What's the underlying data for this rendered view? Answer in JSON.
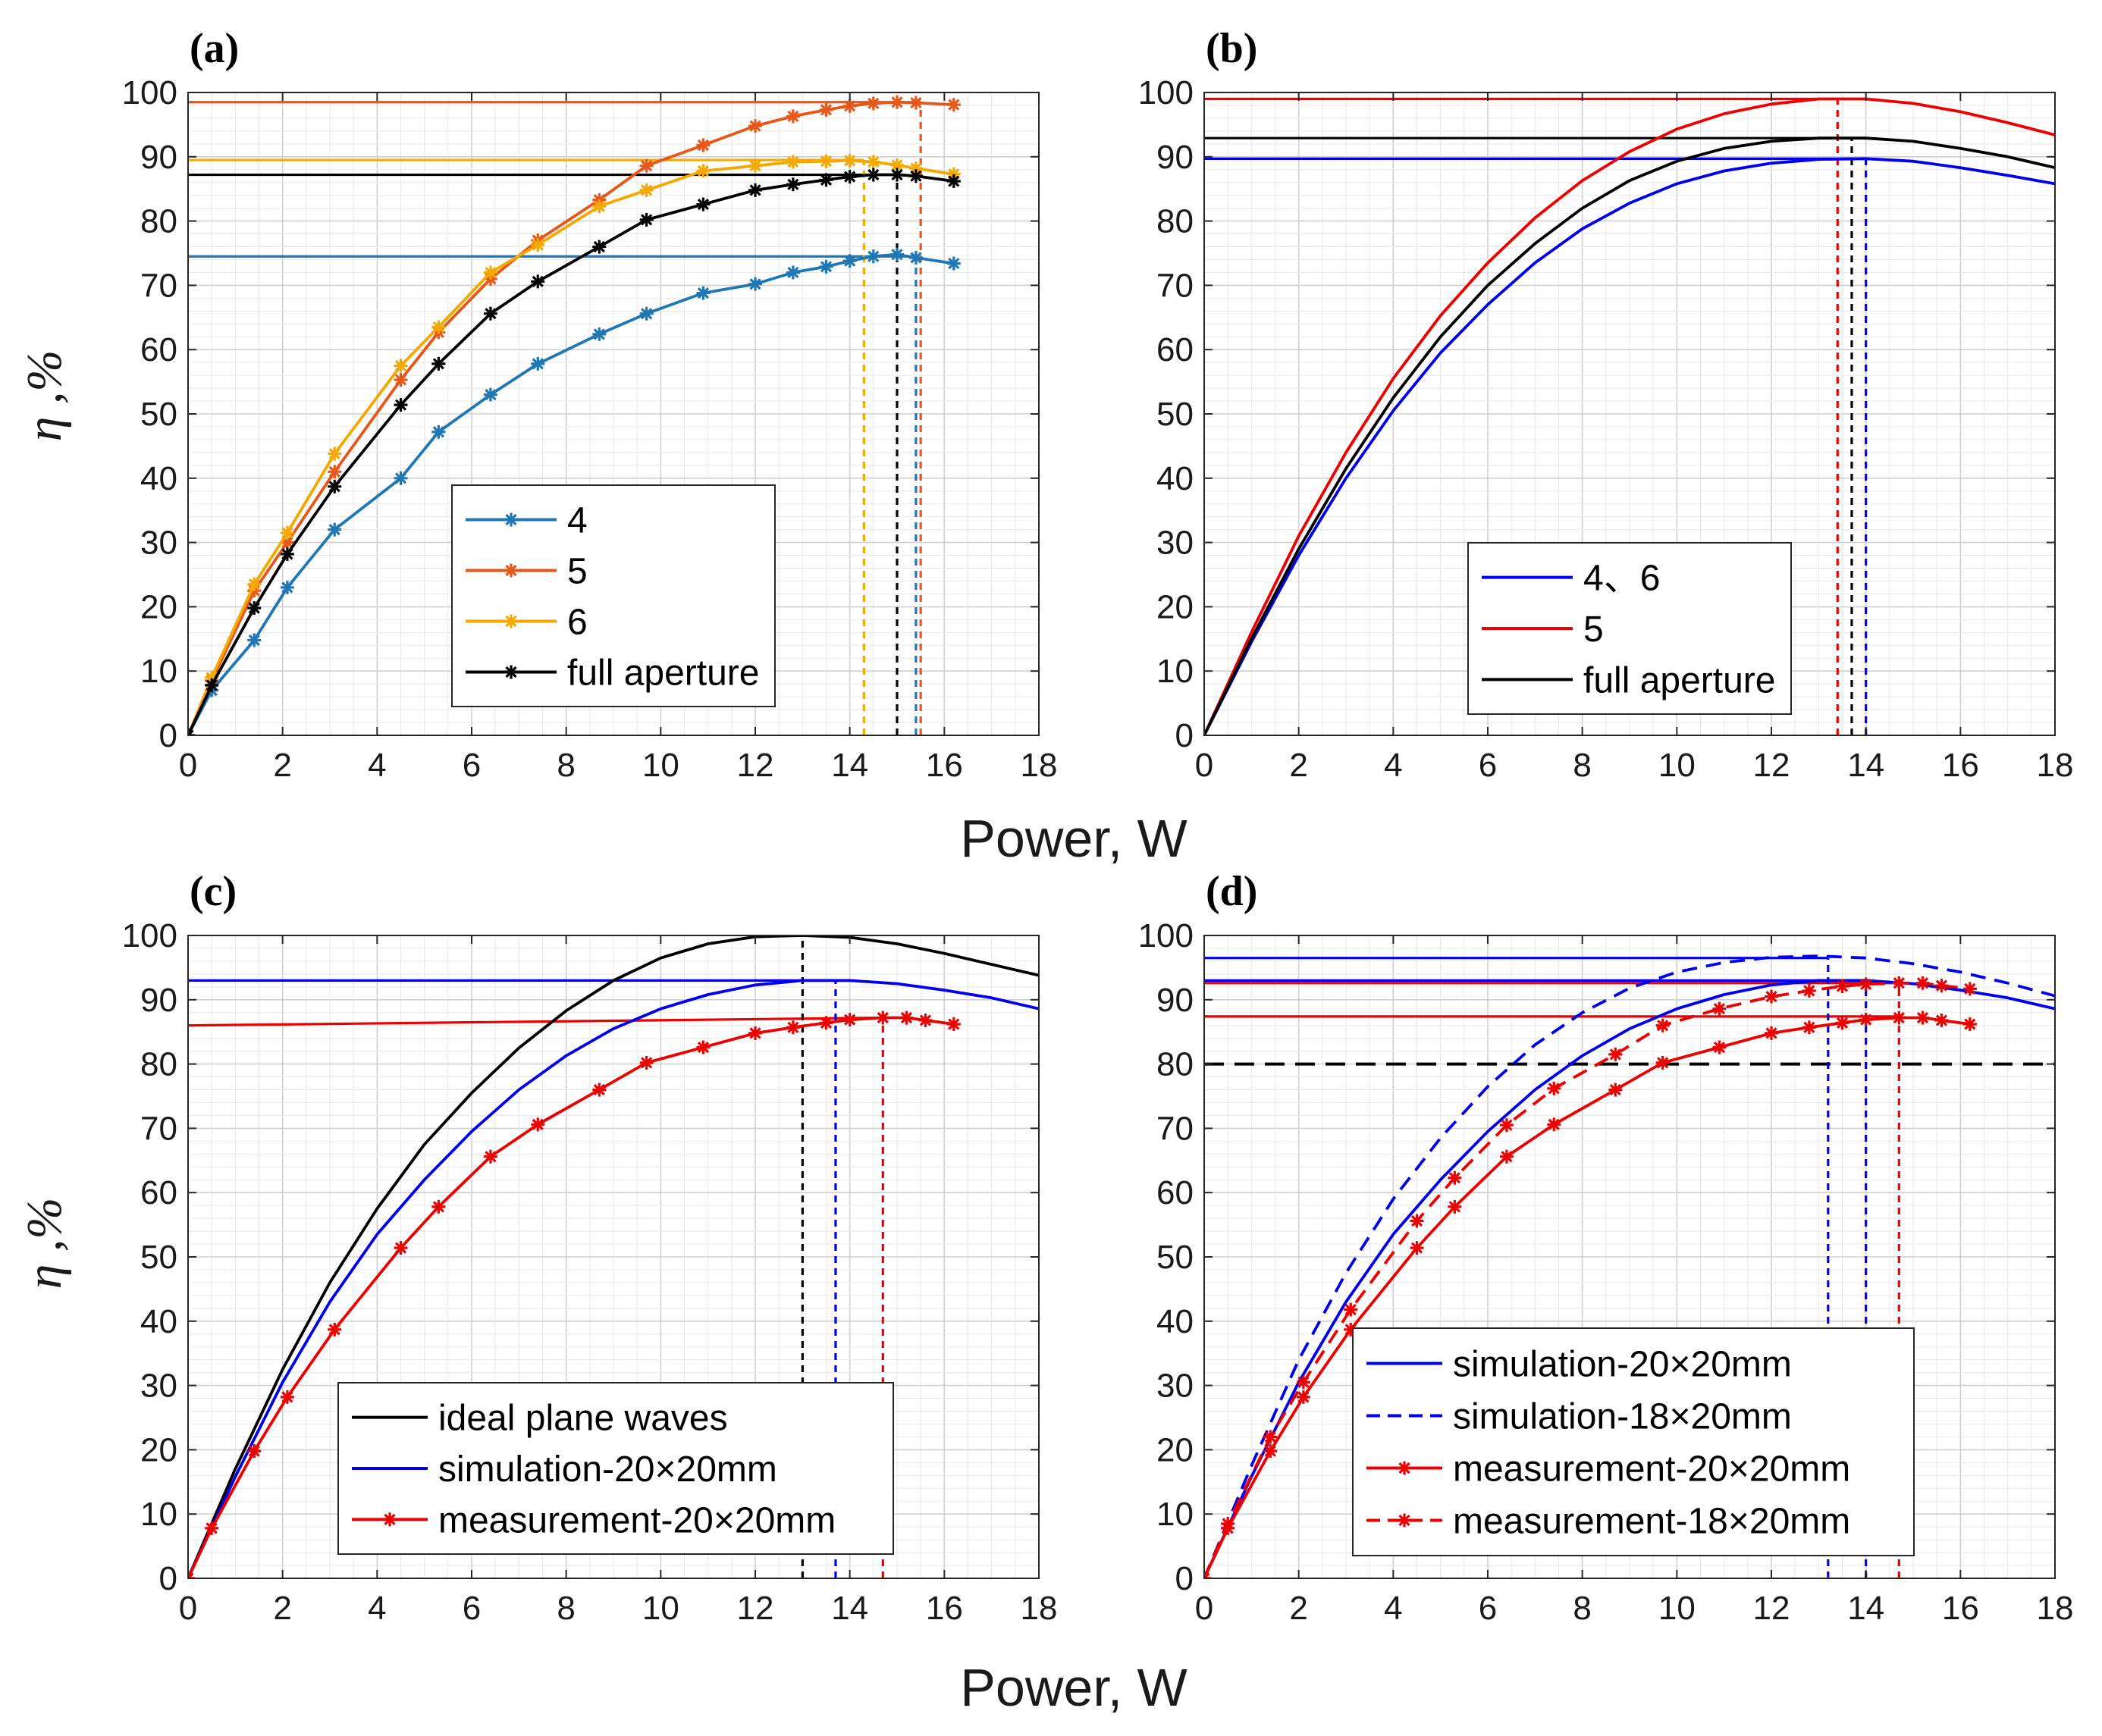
{
  "figure": {
    "xlabel_top": "Power, W",
    "xlabel_bottom": "Power, W",
    "ylabel_top": "η ,%",
    "ylabel_bottom": "η ,%"
  },
  "chart_data": [
    {
      "id": "a",
      "panel_label": "(a)",
      "type": "line",
      "xlim": [
        0,
        18
      ],
      "ylim": [
        0,
        100
      ],
      "xticks": [
        "0",
        "2",
        "4",
        "6",
        "8",
        "10",
        "12",
        "14",
        "16",
        "18"
      ],
      "yticks": [
        "0",
        "10",
        "20",
        "30",
        "40",
        "50",
        "60",
        "70",
        "80",
        "90",
        "100"
      ],
      "grid": true,
      "legend_position": "center-right",
      "series": [
        {
          "name": "4",
          "color": "#1f77b4",
          "style": "solid",
          "marker": "asterisk",
          "in_legend": true,
          "x": [
            0,
            0.5,
            1.4,
            2.1,
            3.1,
            4.5,
            5.3,
            6.4,
            7.4,
            8.7,
            9.7,
            10.9,
            12,
            12.8,
            13.5,
            14,
            14.5,
            15,
            15.4,
            16.2
          ],
          "y": [
            0,
            7,
            14.8,
            23,
            32,
            40,
            47.2,
            53,
            57.8,
            62.4,
            65.6,
            68.8,
            70.2,
            72,
            72.9,
            73.8,
            74.5,
            74.8,
            74.3,
            73.4
          ]
        },
        {
          "name": "5",
          "color": "#e8571a",
          "style": "solid",
          "marker": "asterisk",
          "in_legend": true,
          "x": [
            0,
            0.5,
            1.4,
            2.1,
            3.1,
            4.5,
            5.3,
            6.4,
            7.4,
            8.7,
            9.7,
            10.9,
            12,
            12.8,
            13.5,
            14,
            14.5,
            15,
            15.4,
            16.2
          ],
          "y": [
            0,
            8.5,
            22.5,
            30,
            41,
            55.3,
            62.7,
            71,
            77,
            83.3,
            88.6,
            91.8,
            94.8,
            96.3,
            97.3,
            97.9,
            98.3,
            98.5,
            98.4,
            98.1
          ]
        },
        {
          "name": "6",
          "color": "#f5a800",
          "style": "solid",
          "marker": "asterisk",
          "in_legend": true,
          "x": [
            0,
            0.5,
            1.4,
            2.1,
            3.1,
            4.5,
            5.3,
            6.4,
            7.4,
            8.7,
            9.7,
            10.9,
            12,
            12.8,
            13.5,
            14,
            14.5,
            15,
            15.4,
            16.2
          ],
          "y": [
            0,
            9,
            23.5,
            31.5,
            43.8,
            57.5,
            63.5,
            72,
            76.3,
            82.3,
            84.8,
            87.8,
            88.6,
            89.2,
            89.3,
            89.4,
            89.2,
            88.7,
            88.2,
            87.3
          ]
        },
        {
          "name": "full aperture",
          "color": "#000000",
          "style": "solid",
          "marker": "asterisk",
          "in_legend": true,
          "x": [
            0,
            0.5,
            1.4,
            2.1,
            3.1,
            4.5,
            5.3,
            6.4,
            7.4,
            8.7,
            9.7,
            10.9,
            12,
            12.8,
            13.5,
            14,
            14.5,
            15,
            15.4,
            16.2
          ],
          "y": [
            0,
            7.8,
            19.8,
            28.2,
            38.7,
            51.4,
            57.8,
            65.6,
            70.6,
            76,
            80.2,
            82.6,
            84.8,
            85.7,
            86.4,
            86.9,
            87.2,
            87.2,
            87.0,
            86.2
          ]
        }
      ],
      "reference_lines": [
        {
          "color": "#1f77b4",
          "kind": "h",
          "y": 74.5,
          "x0": 0,
          "x1": 15.4
        },
        {
          "color": "#e8571a",
          "kind": "h",
          "y": 98.5,
          "x0": 0,
          "x1": 15.5
        },
        {
          "color": "#f5a800",
          "kind": "h",
          "y": 89.5,
          "x0": 0,
          "x1": 14.3
        },
        {
          "color": "#000000",
          "kind": "h",
          "y": 87.2,
          "x0": 0,
          "x1": 15.0
        },
        {
          "color": "#f5a800",
          "kind": "v",
          "x": 14.3,
          "y0": 0,
          "y1": 89.5,
          "dashed": true
        },
        {
          "color": "#000000",
          "kind": "v",
          "x": 15.0,
          "y0": 0,
          "y1": 87.2,
          "dashed": true
        },
        {
          "color": "#1f77b4",
          "kind": "v",
          "x": 15.4,
          "y0": 0,
          "y1": 74.5,
          "dashed": true
        },
        {
          "color": "#e8571a",
          "kind": "v",
          "x": 15.5,
          "y0": 0,
          "y1": 98.5,
          "dashed": true
        }
      ]
    },
    {
      "id": "b",
      "panel_label": "(b)",
      "type": "line",
      "xlim": [
        0,
        18
      ],
      "ylim": [
        0,
        100
      ],
      "xticks": [
        "0",
        "2",
        "4",
        "6",
        "8",
        "10",
        "12",
        "14",
        "16",
        "18"
      ],
      "yticks": [
        "0",
        "10",
        "20",
        "30",
        "40",
        "50",
        "60",
        "70",
        "80",
        "90",
        "100"
      ],
      "grid": true,
      "legend_position": "center-right",
      "series": [
        {
          "name": "4、6",
          "color": "#0000ee",
          "style": "solid",
          "marker": "none",
          "in_legend": true,
          "x": [
            0,
            1,
            2,
            3,
            4,
            5,
            6,
            7,
            8,
            9,
            10,
            11,
            12,
            13,
            14,
            15,
            16,
            17,
            18
          ],
          "y": [
            0,
            14.5,
            28,
            40,
            50.5,
            59.5,
            67,
            73.5,
            78.8,
            82.8,
            85.8,
            87.8,
            89,
            89.6,
            89.7,
            89.3,
            88.3,
            87.1,
            85.8
          ]
        },
        {
          "name": "5",
          "color": "#ee0000",
          "style": "solid",
          "marker": "none",
          "in_legend": true,
          "x": [
            0,
            1,
            2,
            3,
            4,
            5,
            6,
            7,
            8,
            9,
            10,
            11,
            12,
            13,
            14,
            15,
            16,
            17,
            18
          ],
          "y": [
            0,
            16,
            31,
            44,
            55.5,
            65.3,
            73.5,
            80.5,
            86.3,
            90.8,
            94.3,
            96.7,
            98.2,
            99,
            99,
            98.3,
            97,
            95.3,
            93.4
          ]
        },
        {
          "name": "full aperture",
          "color": "#000000",
          "style": "solid",
          "marker": "none",
          "in_legend": true,
          "x": [
            0,
            1,
            2,
            3,
            4,
            5,
            6,
            7,
            8,
            9,
            10,
            11,
            12,
            13,
            14,
            15,
            16,
            17,
            18
          ],
          "y": [
            0,
            15,
            29,
            41.5,
            52.5,
            62,
            70,
            76.5,
            82,
            86.3,
            89.3,
            91.3,
            92.4,
            92.9,
            92.9,
            92.4,
            91.3,
            90,
            88.3
          ]
        }
      ],
      "reference_lines": [
        {
          "color": "#0000ee",
          "kind": "h",
          "y": 89.7,
          "x0": 0,
          "x1": 14.0
        },
        {
          "color": "#ee0000",
          "kind": "h",
          "y": 99.0,
          "x0": 0,
          "x1": 13.4
        },
        {
          "color": "#000000",
          "kind": "h",
          "y": 92.9,
          "x0": 0,
          "x1": 13.7
        },
        {
          "color": "#ee0000",
          "kind": "v",
          "x": 13.4,
          "y0": 0,
          "y1": 99.0,
          "dashed": true
        },
        {
          "color": "#000000",
          "kind": "v",
          "x": 13.7,
          "y0": 0,
          "y1": 92.9,
          "dashed": true
        },
        {
          "color": "#0000ee",
          "kind": "v",
          "x": 14.0,
          "y0": 0,
          "y1": 89.7,
          "dashed": true
        }
      ]
    },
    {
      "id": "c",
      "panel_label": "(c)",
      "type": "line",
      "xlim": [
        0,
        18
      ],
      "ylim": [
        0,
        100
      ],
      "xticks": [
        "0",
        "2",
        "4",
        "6",
        "8",
        "10",
        "12",
        "14",
        "16",
        "18"
      ],
      "yticks": [
        "0",
        "10",
        "20",
        "30",
        "40",
        "50",
        "60",
        "70",
        "80",
        "90",
        "100"
      ],
      "grid": true,
      "legend_position": "bottom-right",
      "series": [
        {
          "name": "ideal plane waves",
          "color": "#000000",
          "style": "solid",
          "marker": "none",
          "in_legend": true,
          "x": [
            0,
            1,
            2,
            3,
            4,
            5,
            6,
            7,
            8,
            9,
            10,
            11,
            12,
            13,
            14,
            15,
            16,
            17,
            18
          ],
          "y": [
            0,
            17,
            32.5,
            46,
            57.5,
            67.5,
            75.5,
            82.5,
            88.3,
            93,
            96.5,
            98.7,
            99.8,
            100,
            99.7,
            98.7,
            97.2,
            95.5,
            93.8
          ]
        },
        {
          "name": "simulation-20×20mm",
          "color": "#0000ee",
          "style": "solid",
          "marker": "none",
          "in_legend": true,
          "x": [
            0,
            1,
            2,
            3,
            4,
            5,
            6,
            7,
            8,
            9,
            10,
            11,
            12,
            13,
            14,
            15,
            16,
            17,
            18
          ],
          "y": [
            0,
            15.8,
            30.5,
            43,
            53.5,
            62,
            69.5,
            76,
            81.3,
            85.5,
            88.6,
            90.8,
            92.3,
            93,
            93,
            92.5,
            91.5,
            90.3,
            88.6
          ]
        },
        {
          "name": "measurement-20×20mm",
          "color": "#ee0000",
          "style": "solid",
          "marker": "asterisk",
          "in_legend": true,
          "x": [
            0,
            0.5,
            1.4,
            2.1,
            3.1,
            4.5,
            5.3,
            6.4,
            7.4,
            8.7,
            9.7,
            10.9,
            12,
            12.8,
            13.5,
            14,
            14.7,
            15.2,
            15.6,
            16.2
          ],
          "y": [
            0,
            7.8,
            19.8,
            28.2,
            38.7,
            51.4,
            57.8,
            65.6,
            70.6,
            76,
            80.2,
            82.6,
            84.8,
            85.7,
            86.4,
            86.9,
            87.2,
            87.2,
            86.8,
            86.2
          ]
        }
      ],
      "reference_lines": [
        {
          "color": "#0000ee",
          "kind": "h",
          "y": 93.0,
          "x0": 0,
          "x1": 13.7
        },
        {
          "color": "#ee0000",
          "kind": "h",
          "y1": 86.0,
          "y2": 87.2,
          "x0": 0,
          "x1": 14.7
        },
        {
          "color": "#000000",
          "kind": "v",
          "x": 13.0,
          "y0": 0,
          "y1": 100,
          "dashed": true
        },
        {
          "color": "#0000ee",
          "kind": "v",
          "x": 13.7,
          "y0": 0,
          "y1": 93.0,
          "dashed": true
        },
        {
          "color": "#ee0000",
          "kind": "v",
          "x": 14.7,
          "y0": 0,
          "y1": 87.2,
          "dashed": true
        }
      ]
    },
    {
      "id": "d",
      "panel_label": "(d)",
      "type": "line",
      "xlim": [
        0,
        18
      ],
      "ylim": [
        0,
        100
      ],
      "xticks": [
        "0",
        "2",
        "4",
        "6",
        "8",
        "10",
        "12",
        "14",
        "16",
        "18"
      ],
      "yticks": [
        "0",
        "10",
        "20",
        "30",
        "40",
        "50",
        "60",
        "70",
        "80",
        "90",
        "100"
      ],
      "grid": true,
      "legend_position": "bottom-right",
      "series": [
        {
          "name": "simulation-20×20mm",
          "color": "#0000ee",
          "style": "solid",
          "marker": "none",
          "in_legend": true,
          "x": [
            0,
            1,
            2,
            3,
            4,
            5,
            6,
            7,
            8,
            9,
            10,
            11,
            12,
            13,
            14,
            15,
            16,
            17,
            18
          ],
          "y": [
            0,
            15.8,
            30.5,
            43,
            53.5,
            62,
            69.5,
            76,
            81.3,
            85.5,
            88.6,
            90.8,
            92.3,
            93,
            93,
            92.5,
            91.5,
            90.3,
            88.6
          ]
        },
        {
          "name": "simulation-18×20mm",
          "color": "#0000ee",
          "style": "dashed",
          "marker": "none",
          "in_legend": true,
          "x": [
            0,
            1,
            2,
            3,
            4,
            5,
            6,
            7,
            8,
            9,
            10,
            11,
            12,
            13,
            14,
            15,
            16,
            17,
            18
          ],
          "y": [
            0,
            17.5,
            34,
            47.5,
            59,
            68.5,
            76.5,
            83,
            88,
            91.8,
            94.3,
            95.8,
            96.6,
            96.8,
            96.5,
            95.6,
            94.3,
            92.6,
            90.6
          ]
        },
        {
          "name": "measurement-20×20mm",
          "color": "#ee0000",
          "style": "solid",
          "marker": "asterisk",
          "in_legend": true,
          "x": [
            0,
            0.5,
            1.4,
            2.1,
            3.1,
            4.5,
            5.3,
            6.4,
            7.4,
            8.7,
            9.7,
            10.9,
            12,
            12.8,
            13.5,
            14,
            14.7,
            15.2,
            15.6,
            16.2
          ],
          "y": [
            0,
            7.8,
            19.8,
            28.2,
            38.7,
            51.4,
            57.8,
            65.6,
            70.6,
            76,
            80.2,
            82.6,
            84.8,
            85.7,
            86.4,
            86.9,
            87.2,
            87.2,
            86.8,
            86.2
          ]
        },
        {
          "name": "measurement-18×20mm",
          "color": "#ee0000",
          "style": "dashed",
          "marker": "asterisk",
          "in_legend": true,
          "x": [
            0,
            0.5,
            1.4,
            2.1,
            3.1,
            4.5,
            5.3,
            6.4,
            7.4,
            8.7,
            9.7,
            10.9,
            12,
            12.8,
            13.5,
            14,
            14.7,
            15.2,
            15.6,
            16.2
          ],
          "y": [
            0,
            8.5,
            22,
            30.5,
            41.8,
            55.6,
            62.3,
            70.5,
            76.2,
            81.5,
            86,
            88.6,
            90.5,
            91.4,
            92.1,
            92.4,
            92.6,
            92.6,
            92.2,
            91.7
          ]
        }
      ],
      "reference_lines": [
        {
          "color": "#000000",
          "kind": "h",
          "y": 80,
          "x0": 0,
          "x1": 18,
          "dashed": true,
          "wide": true
        },
        {
          "color": "#0000ee",
          "kind": "h",
          "y": 96.5,
          "x0": 0,
          "x1": 13.2
        },
        {
          "color": "#0000ee",
          "kind": "h",
          "y": 93.0,
          "x0": 0,
          "x1": 14.0
        },
        {
          "color": "#ee0000",
          "kind": "h",
          "y": 92.6,
          "x0": 0,
          "x1": 14.7
        },
        {
          "color": "#ee0000",
          "kind": "h",
          "y": 87.4,
          "x0": 0,
          "x1": 14.7
        },
        {
          "color": "#0000ee",
          "kind": "v",
          "x": 13.2,
          "y0": 0,
          "y1": 96.5,
          "dashed": true
        },
        {
          "color": "#0000ee",
          "kind": "v",
          "x": 14.0,
          "y0": 0,
          "y1": 93.0,
          "dashed": true
        },
        {
          "color": "#ee0000",
          "kind": "v",
          "x": 14.7,
          "y0": 0,
          "y1": 92.6,
          "dashed": true
        }
      ]
    }
  ]
}
